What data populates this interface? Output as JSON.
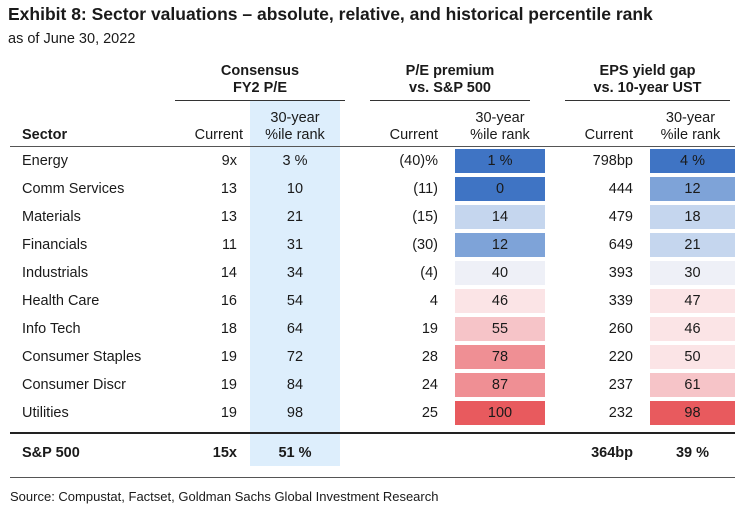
{
  "title": "Exhibit 8: Sector valuations – absolute, relative, and historical percentile rank",
  "subtitle": "as of June 30, 2022",
  "groups": {
    "pe": {
      "line1": "Consensus",
      "line2": "FY2 P/E"
    },
    "premium": {
      "line1": "P/E premium",
      "line2": "vs. S&P 500"
    },
    "yield": {
      "line1": "EPS yield gap",
      "line2": "vs. 10-year UST"
    }
  },
  "headers": {
    "sector": "Sector",
    "current": "Current",
    "rank_line1": "30-year",
    "rank_line2": "%ile rank"
  },
  "heat_colors": {
    "blue_dark": "#3f74c4",
    "blue_mid": "#7ea3d8",
    "blue_light": "#c5d6ee",
    "neutral": "#eef0f7",
    "red_pale": "#fbe4e6",
    "red_light": "#f6c4c8",
    "red_mid": "#ef8f94",
    "red_dark": "#e85a5e",
    "band": "#ddeefc"
  },
  "rows": [
    {
      "sector": "Energy",
      "pe_current": "9x",
      "pe_rank": "3 %",
      "prem_current": "(40)%",
      "prem_rank": "1 %",
      "prem_rank_value": 1,
      "yield_current": "798bp",
      "yield_rank": "4 %",
      "yield_rank_value": 4
    },
    {
      "sector": "Comm Services",
      "pe_current": "13",
      "pe_rank": "10",
      "prem_current": "(11)",
      "prem_rank": "0",
      "prem_rank_value": 0,
      "yield_current": "444",
      "yield_rank": "12",
      "yield_rank_value": 12
    },
    {
      "sector": "Materials",
      "pe_current": "13",
      "pe_rank": "21",
      "prem_current": "(15)",
      "prem_rank": "14",
      "prem_rank_value": 14,
      "yield_current": "479",
      "yield_rank": "18",
      "yield_rank_value": 18
    },
    {
      "sector": "Financials",
      "pe_current": "11",
      "pe_rank": "31",
      "prem_current": "(30)",
      "prem_rank": "12",
      "prem_rank_value": 12,
      "yield_current": "649",
      "yield_rank": "21",
      "yield_rank_value": 21
    },
    {
      "sector": "Industrials",
      "pe_current": "14",
      "pe_rank": "34",
      "prem_current": "(4)",
      "prem_rank": "40",
      "prem_rank_value": 40,
      "yield_current": "393",
      "yield_rank": "30",
      "yield_rank_value": 30
    },
    {
      "sector": "Health Care",
      "pe_current": "16",
      "pe_rank": "54",
      "prem_current": "4",
      "prem_rank": "46",
      "prem_rank_value": 46,
      "yield_current": "339",
      "yield_rank": "47",
      "yield_rank_value": 47
    },
    {
      "sector": "Info Tech",
      "pe_current": "18",
      "pe_rank": "64",
      "prem_current": "19",
      "prem_rank": "55",
      "prem_rank_value": 55,
      "yield_current": "260",
      "yield_rank": "46",
      "yield_rank_value": 46
    },
    {
      "sector": "Consumer Staples",
      "pe_current": "19",
      "pe_rank": "72",
      "prem_current": "28",
      "prem_rank": "78",
      "prem_rank_value": 78,
      "yield_current": "220",
      "yield_rank": "50",
      "yield_rank_value": 50
    },
    {
      "sector": "Consumer Discr",
      "pe_current": "19",
      "pe_rank": "84",
      "prem_current": "24",
      "prem_rank": "87",
      "prem_rank_value": 87,
      "yield_current": "237",
      "yield_rank": "61",
      "yield_rank_value": 61
    },
    {
      "sector": "Utilities",
      "pe_current": "19",
      "pe_rank": "98",
      "prem_current": "25",
      "prem_rank": "100",
      "prem_rank_value": 100,
      "yield_current": "232",
      "yield_rank": "98",
      "yield_rank_value": 98
    }
  ],
  "total": {
    "sector": "S&P 500",
    "pe_current": "15x",
    "pe_rank": "51 %",
    "yield_current": "364bp",
    "yield_rank": "39 %"
  },
  "source": "Source: Compustat, Factset, Goldman Sachs Global Investment Research"
}
